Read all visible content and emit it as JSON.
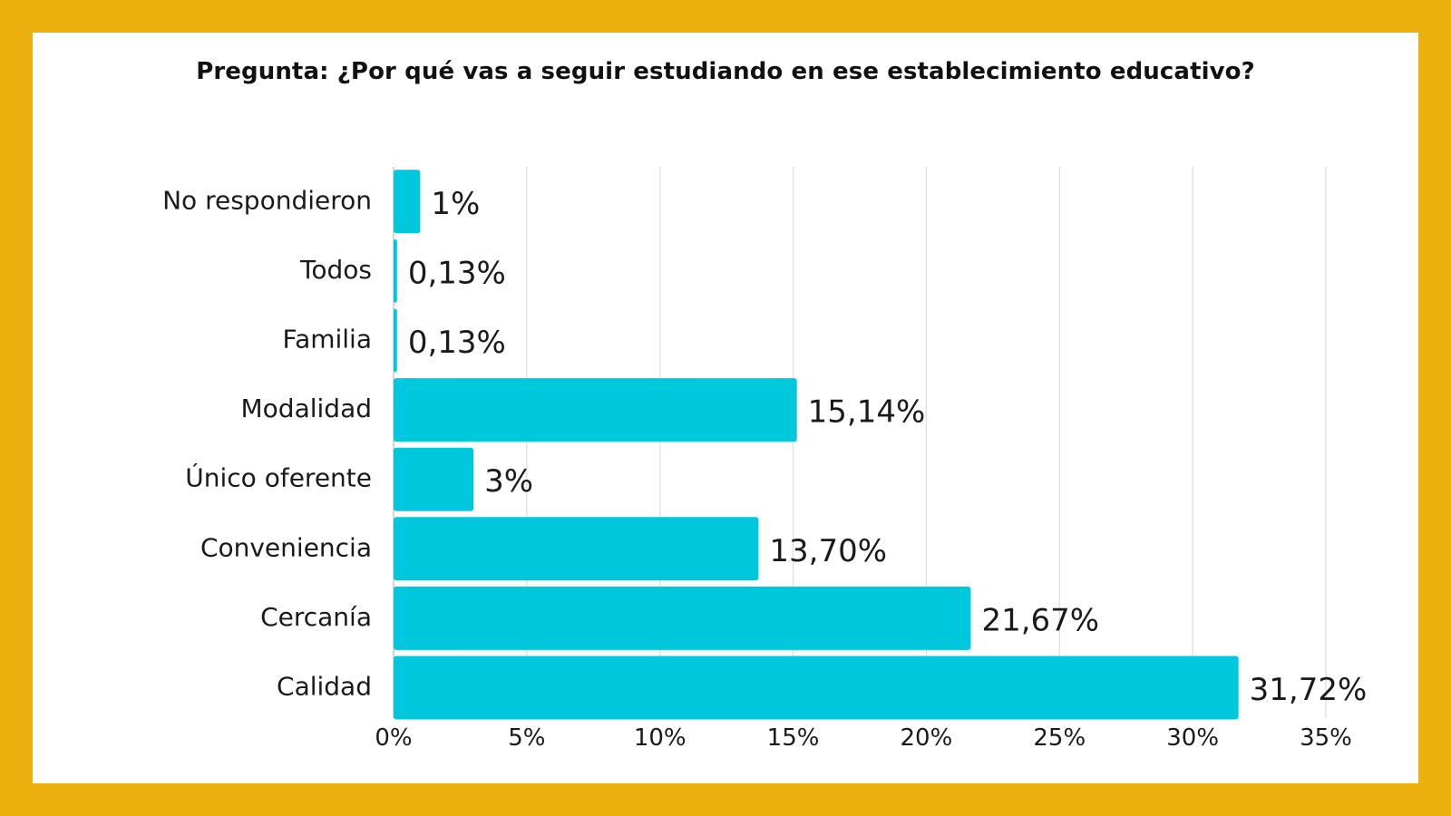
{
  "colors": {
    "frame": "#ECB10F",
    "card": "#FFFFFF",
    "bar": "#00C8DC",
    "grid": "#DDDDDD",
    "text": "#1A1A1A"
  },
  "chart_data": {
    "type": "bar",
    "orientation": "horizontal",
    "title": "Pregunta: ¿Por qué vas a seguir estudiando en ese establecimiento educativo?",
    "xlabel": "",
    "ylabel": "",
    "categories": [
      "No respondieron",
      "Todos",
      "Familia",
      "Modalidad",
      "Único oferente",
      "Conveniencia",
      "Cercanía",
      "Calidad"
    ],
    "values": [
      1,
      0.13,
      0.13,
      15.14,
      3,
      13.7,
      21.67,
      31.72
    ],
    "value_labels": [
      "1%",
      "0,13%",
      "0,13%",
      "15,14%",
      "3%",
      "13,70%",
      "21,67%",
      "31,72%"
    ],
    "xlim": [
      0,
      35
    ],
    "x_ticks": [
      0,
      5,
      10,
      15,
      20,
      25,
      30,
      35
    ],
    "x_tick_labels": [
      "0%",
      "5%",
      "10%",
      "15%",
      "20%",
      "25%",
      "30%",
      "35%"
    ],
    "grid": "vertical",
    "legend": "none"
  }
}
